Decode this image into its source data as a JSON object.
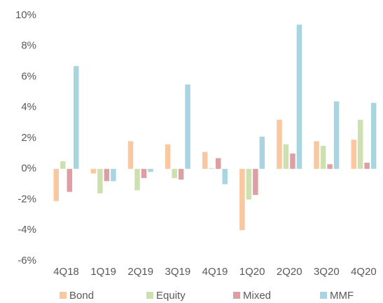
{
  "chart_data": {
    "type": "bar",
    "categories": [
      "4Q18",
      "1Q19",
      "2Q19",
      "3Q19",
      "4Q19",
      "1Q20",
      "2Q20",
      "3Q20",
      "4Q20"
    ],
    "series": [
      {
        "name": "Bond",
        "color": "#f9c8a0",
        "values": [
          -2.1,
          -0.3,
          1.8,
          1.6,
          1.1,
          -4.0,
          3.2,
          1.8,
          1.9
        ]
      },
      {
        "name": "Equity",
        "color": "#cfe0b0",
        "values": [
          0.5,
          -1.6,
          -1.4,
          -0.6,
          0.05,
          -2.0,
          1.6,
          1.5,
          3.2
        ]
      },
      {
        "name": "Mixed",
        "color": "#dca0a4",
        "values": [
          -1.5,
          -0.8,
          -0.6,
          -0.7,
          0.7,
          -1.7,
          1.0,
          0.3,
          0.4
        ]
      },
      {
        "name": "MMF",
        "color": "#a8d5e0",
        "values": [
          6.7,
          -0.8,
          -0.2,
          5.5,
          -1.0,
          2.1,
          9.4,
          4.4,
          4.3
        ]
      }
    ],
    "ylim": [
      -6,
      10
    ],
    "yticks": [
      {
        "value": -6,
        "label": "-6%"
      },
      {
        "value": -4,
        "label": "-4%"
      },
      {
        "value": -2,
        "label": "-2%"
      },
      {
        "value": 0,
        "label": "0%"
      },
      {
        "value": 2,
        "label": "2%"
      },
      {
        "value": 4,
        "label": "4%"
      },
      {
        "value": 6,
        "label": "6%"
      },
      {
        "value": 8,
        "label": "8%"
      },
      {
        "value": 10,
        "label": "10%"
      }
    ],
    "grid": false,
    "legend": "bottom"
  }
}
